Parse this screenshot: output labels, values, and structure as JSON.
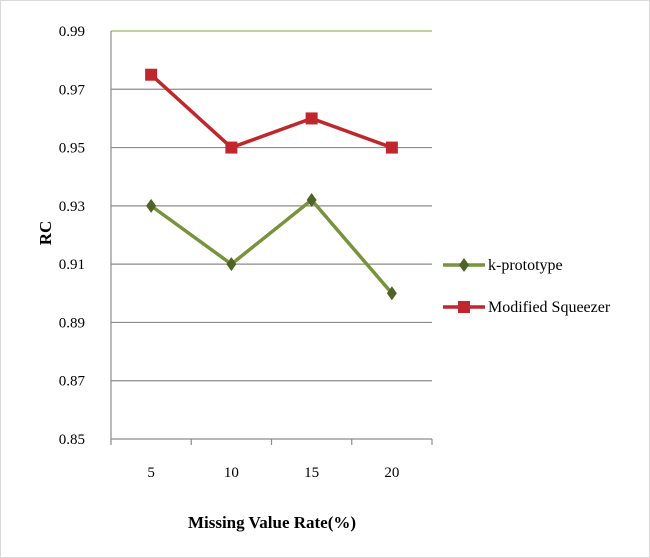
{
  "chart_data": {
    "type": "line",
    "title": "",
    "xlabel": "Missing Value Rate(%)",
    "ylabel": "RC",
    "categories": [
      "5",
      "10",
      "15",
      "20"
    ],
    "ylim": [
      0.85,
      0.99
    ],
    "yticks": [
      "0.85",
      "0.87",
      "0.89",
      "0.91",
      "0.93",
      "0.95",
      "0.97",
      "0.99"
    ],
    "grid": true,
    "legend_position": "right",
    "series": [
      {
        "name": "k-prototype",
        "values": [
          0.93,
          0.91,
          0.932,
          0.9
        ],
        "color": "#77933c",
        "marker": "diamond"
      },
      {
        "name": "Modified Squeezer",
        "values": [
          0.975,
          0.95,
          0.96,
          0.95
        ],
        "color": "#c0272d",
        "marker": "square"
      }
    ]
  }
}
